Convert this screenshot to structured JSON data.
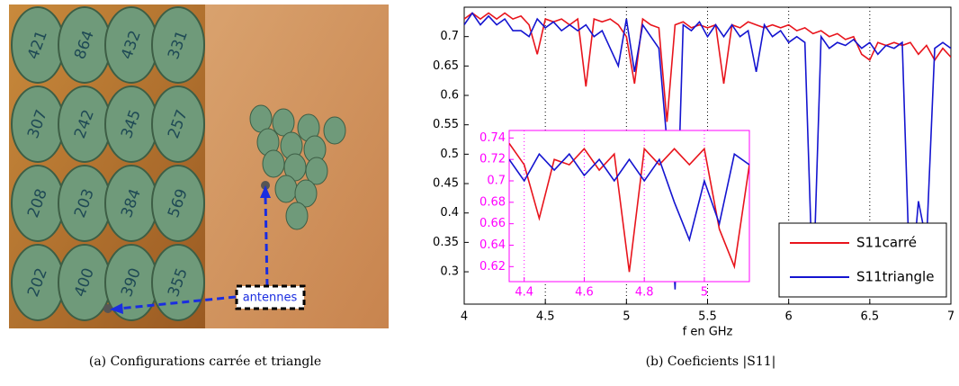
{
  "photo": {
    "disc_labels": [
      "421",
      "864",
      "432",
      "331",
      "307",
      "242",
      "345",
      "257",
      "208",
      "203",
      "384",
      "569",
      "202",
      "400",
      "390",
      "355"
    ],
    "annotation": "antennes"
  },
  "chart_data": [
    {
      "type": "line",
      "xlabel": "f en GHz",
      "xlim": [
        4,
        7
      ],
      "ylim": [
        0.245,
        0.75
      ],
      "xticks": [
        4,
        4.5,
        5,
        5.5,
        6,
        6.5,
        7
      ],
      "yticks": [
        0.3,
        0.35,
        0.4,
        0.45,
        0.5,
        0.55,
        0.6,
        0.65,
        0.7
      ],
      "grid": "x",
      "legend": "lower right",
      "x": [
        4,
        4.05,
        4.1,
        4.15,
        4.2,
        4.25,
        4.3,
        4.35,
        4.4,
        4.45,
        4.5,
        4.55,
        4.6,
        4.65,
        4.7,
        4.75,
        4.8,
        4.85,
        4.9,
        4.95,
        5,
        5.05,
        5.1,
        5.15,
        5.2,
        5.25,
        5.3,
        5.35,
        5.4,
        5.45,
        5.5,
        5.55,
        5.6,
        5.65,
        5.7,
        5.75,
        5.8,
        5.85,
        5.9,
        5.95,
        6,
        6.05,
        6.1,
        6.15,
        6.2,
        6.25,
        6.3,
        6.35,
        6.4,
        6.45,
        6.5,
        6.55,
        6.6,
        6.65,
        6.7,
        6.75,
        6.8,
        6.85,
        6.9,
        6.95,
        7
      ],
      "series": [
        {
          "name": "S11carré",
          "color": "#e8141c",
          "values": [
            0.73,
            0.74,
            0.73,
            0.74,
            0.73,
            0.74,
            0.73,
            0.735,
            0.72,
            0.67,
            0.73,
            0.725,
            0.73,
            0.72,
            0.73,
            0.615,
            0.73,
            0.725,
            0.73,
            0.72,
            0.7,
            0.62,
            0.73,
            0.72,
            0.715,
            0.555,
            0.72,
            0.725,
            0.715,
            0.72,
            0.715,
            0.72,
            0.62,
            0.72,
            0.715,
            0.725,
            0.72,
            0.715,
            0.72,
            0.715,
            0.72,
            0.71,
            0.715,
            0.705,
            0.71,
            0.7,
            0.705,
            0.695,
            0.7,
            0.67,
            0.66,
            0.69,
            0.685,
            0.69,
            0.685,
            0.69,
            0.67,
            0.685,
            0.66,
            0.68,
            0.665
          ]
        },
        {
          "name": "S11triangle",
          "color": "#1414d0",
          "values": [
            0.72,
            0.74,
            0.72,
            0.735,
            0.72,
            0.73,
            0.71,
            0.71,
            0.7,
            0.73,
            0.715,
            0.725,
            0.71,
            0.72,
            0.71,
            0.72,
            0.7,
            0.71,
            0.68,
            0.65,
            0.73,
            0.64,
            0.72,
            0.7,
            0.68,
            0.52,
            0.27,
            0.72,
            0.71,
            0.725,
            0.7,
            0.72,
            0.7,
            0.72,
            0.7,
            0.71,
            0.64,
            0.72,
            0.7,
            0.71,
            0.69,
            0.7,
            0.69,
            0.26,
            0.7,
            0.68,
            0.69,
            0.685,
            0.695,
            0.68,
            0.69,
            0.67,
            0.685,
            0.68,
            0.69,
            0.26,
            0.42,
            0.35,
            0.68,
            0.69,
            0.68
          ]
        }
      ]
    },
    {
      "type": "line",
      "xlim": [
        4.35,
        5.15
      ],
      "ylim": [
        0.606,
        0.747
      ],
      "xticks": [
        4.4,
        4.6,
        4.8,
        5
      ],
      "yticks": [
        0.62,
        0.64,
        0.66,
        0.68,
        0.7,
        0.72,
        0.74
      ],
      "grid": "x",
      "tick_color": "#ff00ff",
      "x": [
        4.35,
        4.4,
        4.45,
        4.5,
        4.55,
        4.6,
        4.65,
        4.7,
        4.75,
        4.8,
        4.85,
        4.9,
        4.95,
        5,
        5.05,
        5.1,
        5.15
      ],
      "series": [
        {
          "color": "#e8141c",
          "values": [
            0.735,
            0.715,
            0.665,
            0.72,
            0.715,
            0.73,
            0.71,
            0.725,
            0.615,
            0.73,
            0.715,
            0.73,
            0.715,
            0.73,
            0.655,
            0.62,
            0.715
          ]
        },
        {
          "color": "#1414d0",
          "values": [
            0.72,
            0.7,
            0.725,
            0.71,
            0.725,
            0.705,
            0.72,
            0.7,
            0.72,
            0.7,
            0.72,
            0.68,
            0.645,
            0.7,
            0.66,
            0.725,
            0.715
          ]
        }
      ]
    }
  ],
  "captions": [
    "(a) Configurations carrée et triangle",
    "(b) Coeficients |S11|"
  ]
}
